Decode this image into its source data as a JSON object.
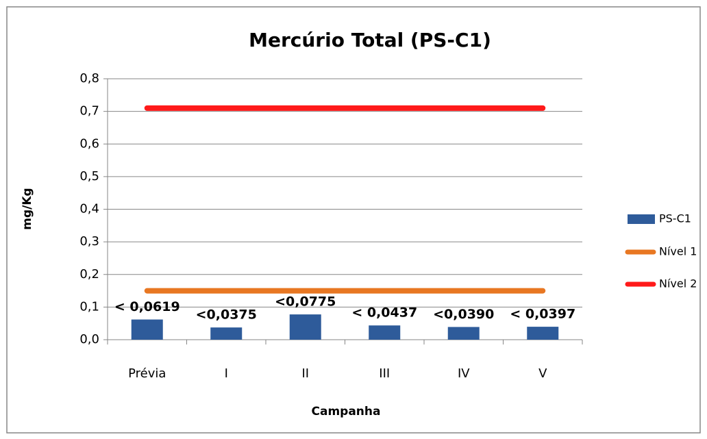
{
  "chart_data": {
    "type": "bar",
    "title": "Mercúrio Total (PS-C1)",
    "x_label": "Campanha",
    "y_label": "mg/Kg",
    "categories": [
      "Prévia",
      "I",
      "II",
      "III",
      "IV",
      "V"
    ],
    "series": [
      {
        "name": "PS-C1",
        "type": "bar",
        "color": "#2e5b9a",
        "values": [
          0.0619,
          0.0375,
          0.0775,
          0.0437,
          0.039,
          0.0397
        ],
        "value_labels": [
          "< 0,0619",
          "<0,0375",
          "<0,0775",
          "< 0,0437",
          "<0,0390",
          "< 0,0397"
        ]
      },
      {
        "name": "Nível 1",
        "type": "line",
        "color": "#e87722",
        "values": [
          0.15,
          0.15,
          0.15,
          0.15,
          0.15,
          0.15
        ]
      },
      {
        "name": "Nível 2",
        "type": "line",
        "color": "#ff1a1a",
        "values": [
          0.71,
          0.71,
          0.71,
          0.71,
          0.71,
          0.71
        ]
      }
    ],
    "ylim": [
      0,
      0.8
    ],
    "yticks": [
      {
        "value": 0,
        "label": "0,0"
      },
      {
        "value": 0.1,
        "label": "0,1"
      },
      {
        "value": 0.2,
        "label": "0,2"
      },
      {
        "value": 0.3,
        "label": "0,3"
      },
      {
        "value": 0.4,
        "label": "0,4"
      },
      {
        "value": 0.5,
        "label": "0,5"
      },
      {
        "value": 0.6,
        "label": "0,6"
      },
      {
        "value": 0.7,
        "label": "0,7"
      },
      {
        "value": 0.8,
        "label": "0,8"
      }
    ],
    "grid": true,
    "legend": "right"
  }
}
